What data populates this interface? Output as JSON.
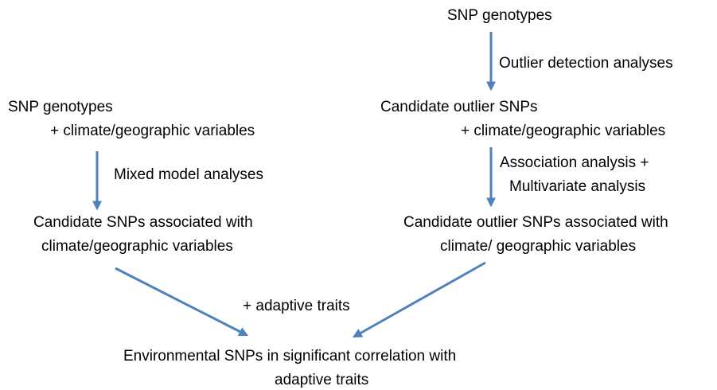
{
  "nodes": [
    {
      "lines": [
        "SNP genotypes"
      ]
    },
    {
      "lines": [
        "Candidate outlier SNPs",
        "+ climate/geographic variables"
      ]
    },
    {
      "lines": [
        "Candidate outlier SNPs associated with",
        "climate/ geographic variables"
      ]
    },
    {
      "lines": [
        "SNP genotypes",
        "+ climate/geographic variables"
      ]
    },
    {
      "lines": [
        "Candidate SNPs associated with",
        "climate/geographic variables"
      ]
    },
    {
      "lines": [
        "Environmental SNPs in significant correlation with",
        "adaptive traits"
      ]
    }
  ],
  "edges": [
    {
      "label": [
        "Outlier detection analyses"
      ]
    },
    {
      "label": [
        "Association analysis +",
        "Multivariate analysis"
      ]
    },
    {
      "label": [
        "Mixed model analyses"
      ]
    },
    {
      "label": [
        "+ adaptive traits"
      ]
    }
  ]
}
